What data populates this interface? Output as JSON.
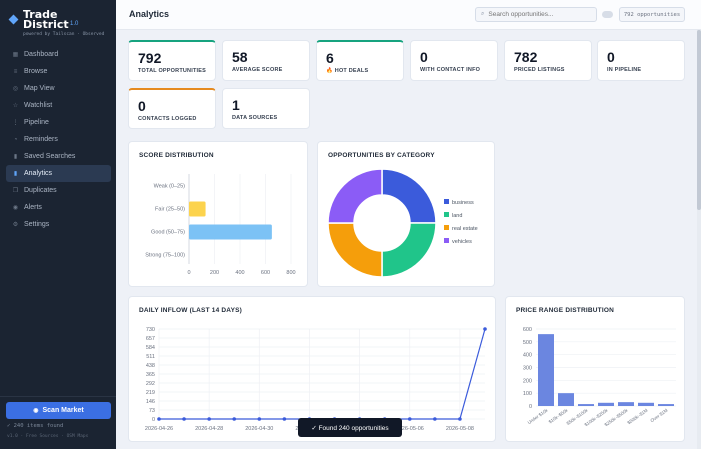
{
  "brand": {
    "name": "Trade District",
    "version": "1.0",
    "powered": "powered by Tailscan · Observed"
  },
  "nav": [
    {
      "name": "dashboard",
      "label": "Dashboard",
      "icon": "grid-icon",
      "glyph": "▦"
    },
    {
      "name": "browse",
      "label": "Browse",
      "icon": "list-icon",
      "glyph": "≡"
    },
    {
      "name": "map-view",
      "label": "Map View",
      "icon": "map-icon",
      "glyph": "◎"
    },
    {
      "name": "watchlist",
      "label": "Watchlist",
      "icon": "star-icon",
      "glyph": "☆"
    },
    {
      "name": "pipeline",
      "label": "Pipeline",
      "icon": "pipeline-icon",
      "glyph": "⋮"
    },
    {
      "name": "reminders",
      "label": "Reminders",
      "icon": "bell-icon",
      "glyph": "◔"
    },
    {
      "name": "saved-searches",
      "label": "Saved Searches",
      "icon": "bookmark-icon",
      "glyph": "▮"
    },
    {
      "name": "analytics",
      "label": "Analytics",
      "icon": "chart-icon",
      "glyph": "▮",
      "active": true
    },
    {
      "name": "duplicates",
      "label": "Duplicates",
      "icon": "copy-icon",
      "glyph": "❐"
    },
    {
      "name": "alerts",
      "label": "Alerts",
      "icon": "alert-icon",
      "glyph": "◉"
    },
    {
      "name": "settings",
      "label": "Settings",
      "icon": "gear-icon",
      "glyph": "⚙"
    }
  ],
  "sidebar_bottom": {
    "scan_label": "Scan Market",
    "items_found": "✓ 240 items found",
    "version_line": "v1.0 · Free Sources · OSM Maps"
  },
  "header": {
    "title": "Analytics",
    "search_placeholder": "Search opportunities...",
    "count": "792 opportunities"
  },
  "stats": [
    {
      "value": "792",
      "label": "TOTAL OPPORTUNITIES"
    },
    {
      "value": "58",
      "label": "AVERAGE SCORE"
    },
    {
      "value": "6",
      "label": "🔥 HOT DEALS"
    },
    {
      "value": "0",
      "label": "WITH CONTACT INFO"
    },
    {
      "value": "782",
      "label": "PRICED LISTINGS"
    },
    {
      "value": "0",
      "label": "IN PIPELINE"
    },
    {
      "value": "0",
      "label": "CONTACTS LOGGED"
    },
    {
      "value": "1",
      "label": "DATA SOURCES"
    }
  ],
  "panels": {
    "score": "SCORE DISTRIBUTION",
    "category": "OPPORTUNITIES BY CATEGORY",
    "inflow": "DAILY INFLOW (LAST 14 DAYS)",
    "price": "PRICE RANGE DISTRIBUTION"
  },
  "toast": "✓ Found 240 opportunities",
  "colors": {
    "accent": "#3b6fe3",
    "green": "#16a37f",
    "orange": "#e58a1f"
  },
  "chart_data": [
    {
      "type": "bar",
      "orientation": "horizontal",
      "title": "SCORE DISTRIBUTION",
      "categories": [
        "Weak (0–25)",
        "Fair (25–50)",
        "Good (50–75)",
        "Strong (75–100)"
      ],
      "values": [
        0,
        130,
        650,
        0
      ],
      "colors": [
        "#ef4444",
        "#fcd34d",
        "#7cc2f5",
        "#22c55e"
      ],
      "xlim": [
        0,
        800
      ],
      "xticks": [
        "0",
        "200",
        "400",
        "600",
        "800"
      ]
    },
    {
      "type": "pie",
      "donut": true,
      "title": "OPPORTUNITIES BY CATEGORY",
      "categories": [
        "business",
        "land",
        "real estate",
        "vehicles"
      ],
      "values": [
        25,
        25,
        25,
        25
      ],
      "colors": [
        "#3b5bdb",
        "#20c58a",
        "#f59e0b",
        "#8b5cf6"
      ],
      "legend": "right"
    },
    {
      "type": "line",
      "title": "DAILY INFLOW (LAST 14 DAYS)",
      "x": [
        "2026-04-26",
        "2026-04-27",
        "2026-04-28",
        "2026-04-29",
        "2026-04-30",
        "2026-05-01",
        "2026-05-02",
        "2026-05-03",
        "2026-05-04",
        "2026-05-05",
        "2026-05-06",
        "2026-05-07",
        "2026-05-08",
        "2026-05-09"
      ],
      "y": [
        0,
        0,
        0,
        0,
        0,
        0,
        0,
        0,
        0,
        0,
        0,
        0,
        0,
        730
      ],
      "xticks": [
        "2026-04-26",
        "2026-04-28",
        "2026-04-30",
        "2026-05-02",
        "2026-05-04",
        "2026-05-06",
        "2026-05-08"
      ],
      "yticks": [
        "0",
        "73",
        "146",
        "219",
        "292",
        "365",
        "438",
        "511",
        "584",
        "657",
        "730"
      ],
      "ylim": [
        0,
        730
      ],
      "color": "#3b5bdb"
    },
    {
      "type": "bar",
      "title": "PRICE RANGE DISTRIBUTION",
      "categories": [
        "Under $10k",
        "$10k–$50k",
        "$50k–$100k",
        "$100k–$250k",
        "$250k–$500k",
        "$500k–$1M",
        "Over $1M"
      ],
      "values": [
        560,
        100,
        15,
        25,
        30,
        25,
        15
      ],
      "ylim": [
        0,
        600
      ],
      "yticks": [
        "0",
        "100",
        "200",
        "300",
        "400",
        "500",
        "600"
      ],
      "color": "#6b86e0"
    }
  ]
}
